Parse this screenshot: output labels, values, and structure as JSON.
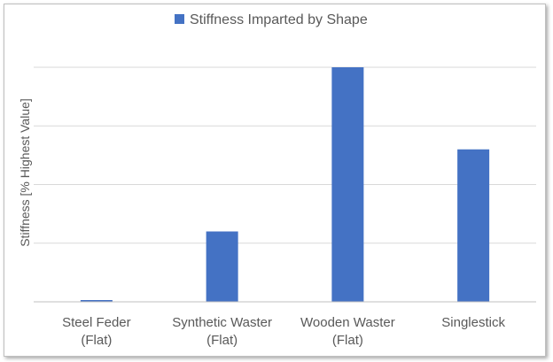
{
  "chart_data": {
    "type": "bar",
    "legend": {
      "label": "Stiffness Imparted by Shape",
      "position": "top"
    },
    "ylabel": "Stiffness [% Highest Value]",
    "xlabel": "",
    "categories": [
      [
        "Steel Feder",
        "(Flat)"
      ],
      [
        "Synthetic Waster",
        "(Flat)"
      ],
      [
        "Wooden Waster",
        "(Flat)"
      ],
      [
        "Singlestick"
      ]
    ],
    "series": [
      {
        "name": "Stiffness Imparted by Shape",
        "values": [
          0.5,
          30,
          100,
          65
        ]
      }
    ],
    "ylim": [
      0,
      100
    ],
    "y_ticks_labeled": false,
    "grid": true,
    "colors": {
      "bar": "#4472c4",
      "grid": "#d9d9d9",
      "axis": "#bfbfbf",
      "text": "#595959"
    }
  }
}
